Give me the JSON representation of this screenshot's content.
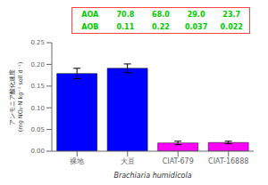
{
  "chart_data": {
    "type": "bar",
    "categories": [
      "裸地",
      "大豆",
      "CIAT-679",
      "CIAT-16888"
    ],
    "values": [
      0.179,
      0.191,
      0.019,
      0.02
    ],
    "errors": [
      0.012,
      0.01,
      0.004,
      0.003
    ],
    "colors": [
      "#0000ff",
      "#0000ff",
      "#ff00ff",
      "#ff00ff"
    ],
    "ylim": [
      0,
      0.25
    ],
    "yticks": [
      {
        "value": 0,
        "label": "0.00"
      },
      0.05,
      {
        "value": 0.1,
        "label": "0.10"
      },
      0.15,
      {
        "value": 0.2,
        "label": "0.20"
      },
      0.25
    ],
    "xlabel": "Brachiaria humidicola",
    "ylabel": [
      "アンモニア酸化速度",
      "(mg NO₂·N kg⁻¹ soil d⁻¹)"
    ],
    "annotation": {
      "color": "#00cc00",
      "border_color": "#ff4444",
      "rows": [
        {
          "label": "AOA",
          "values": [
            "70.8",
            "68.0",
            "29.0",
            "23.7"
          ]
        },
        {
          "label": "AOB",
          "values": [
            "0.11",
            "0.22",
            "0.037",
            "0.022"
          ]
        }
      ]
    }
  }
}
